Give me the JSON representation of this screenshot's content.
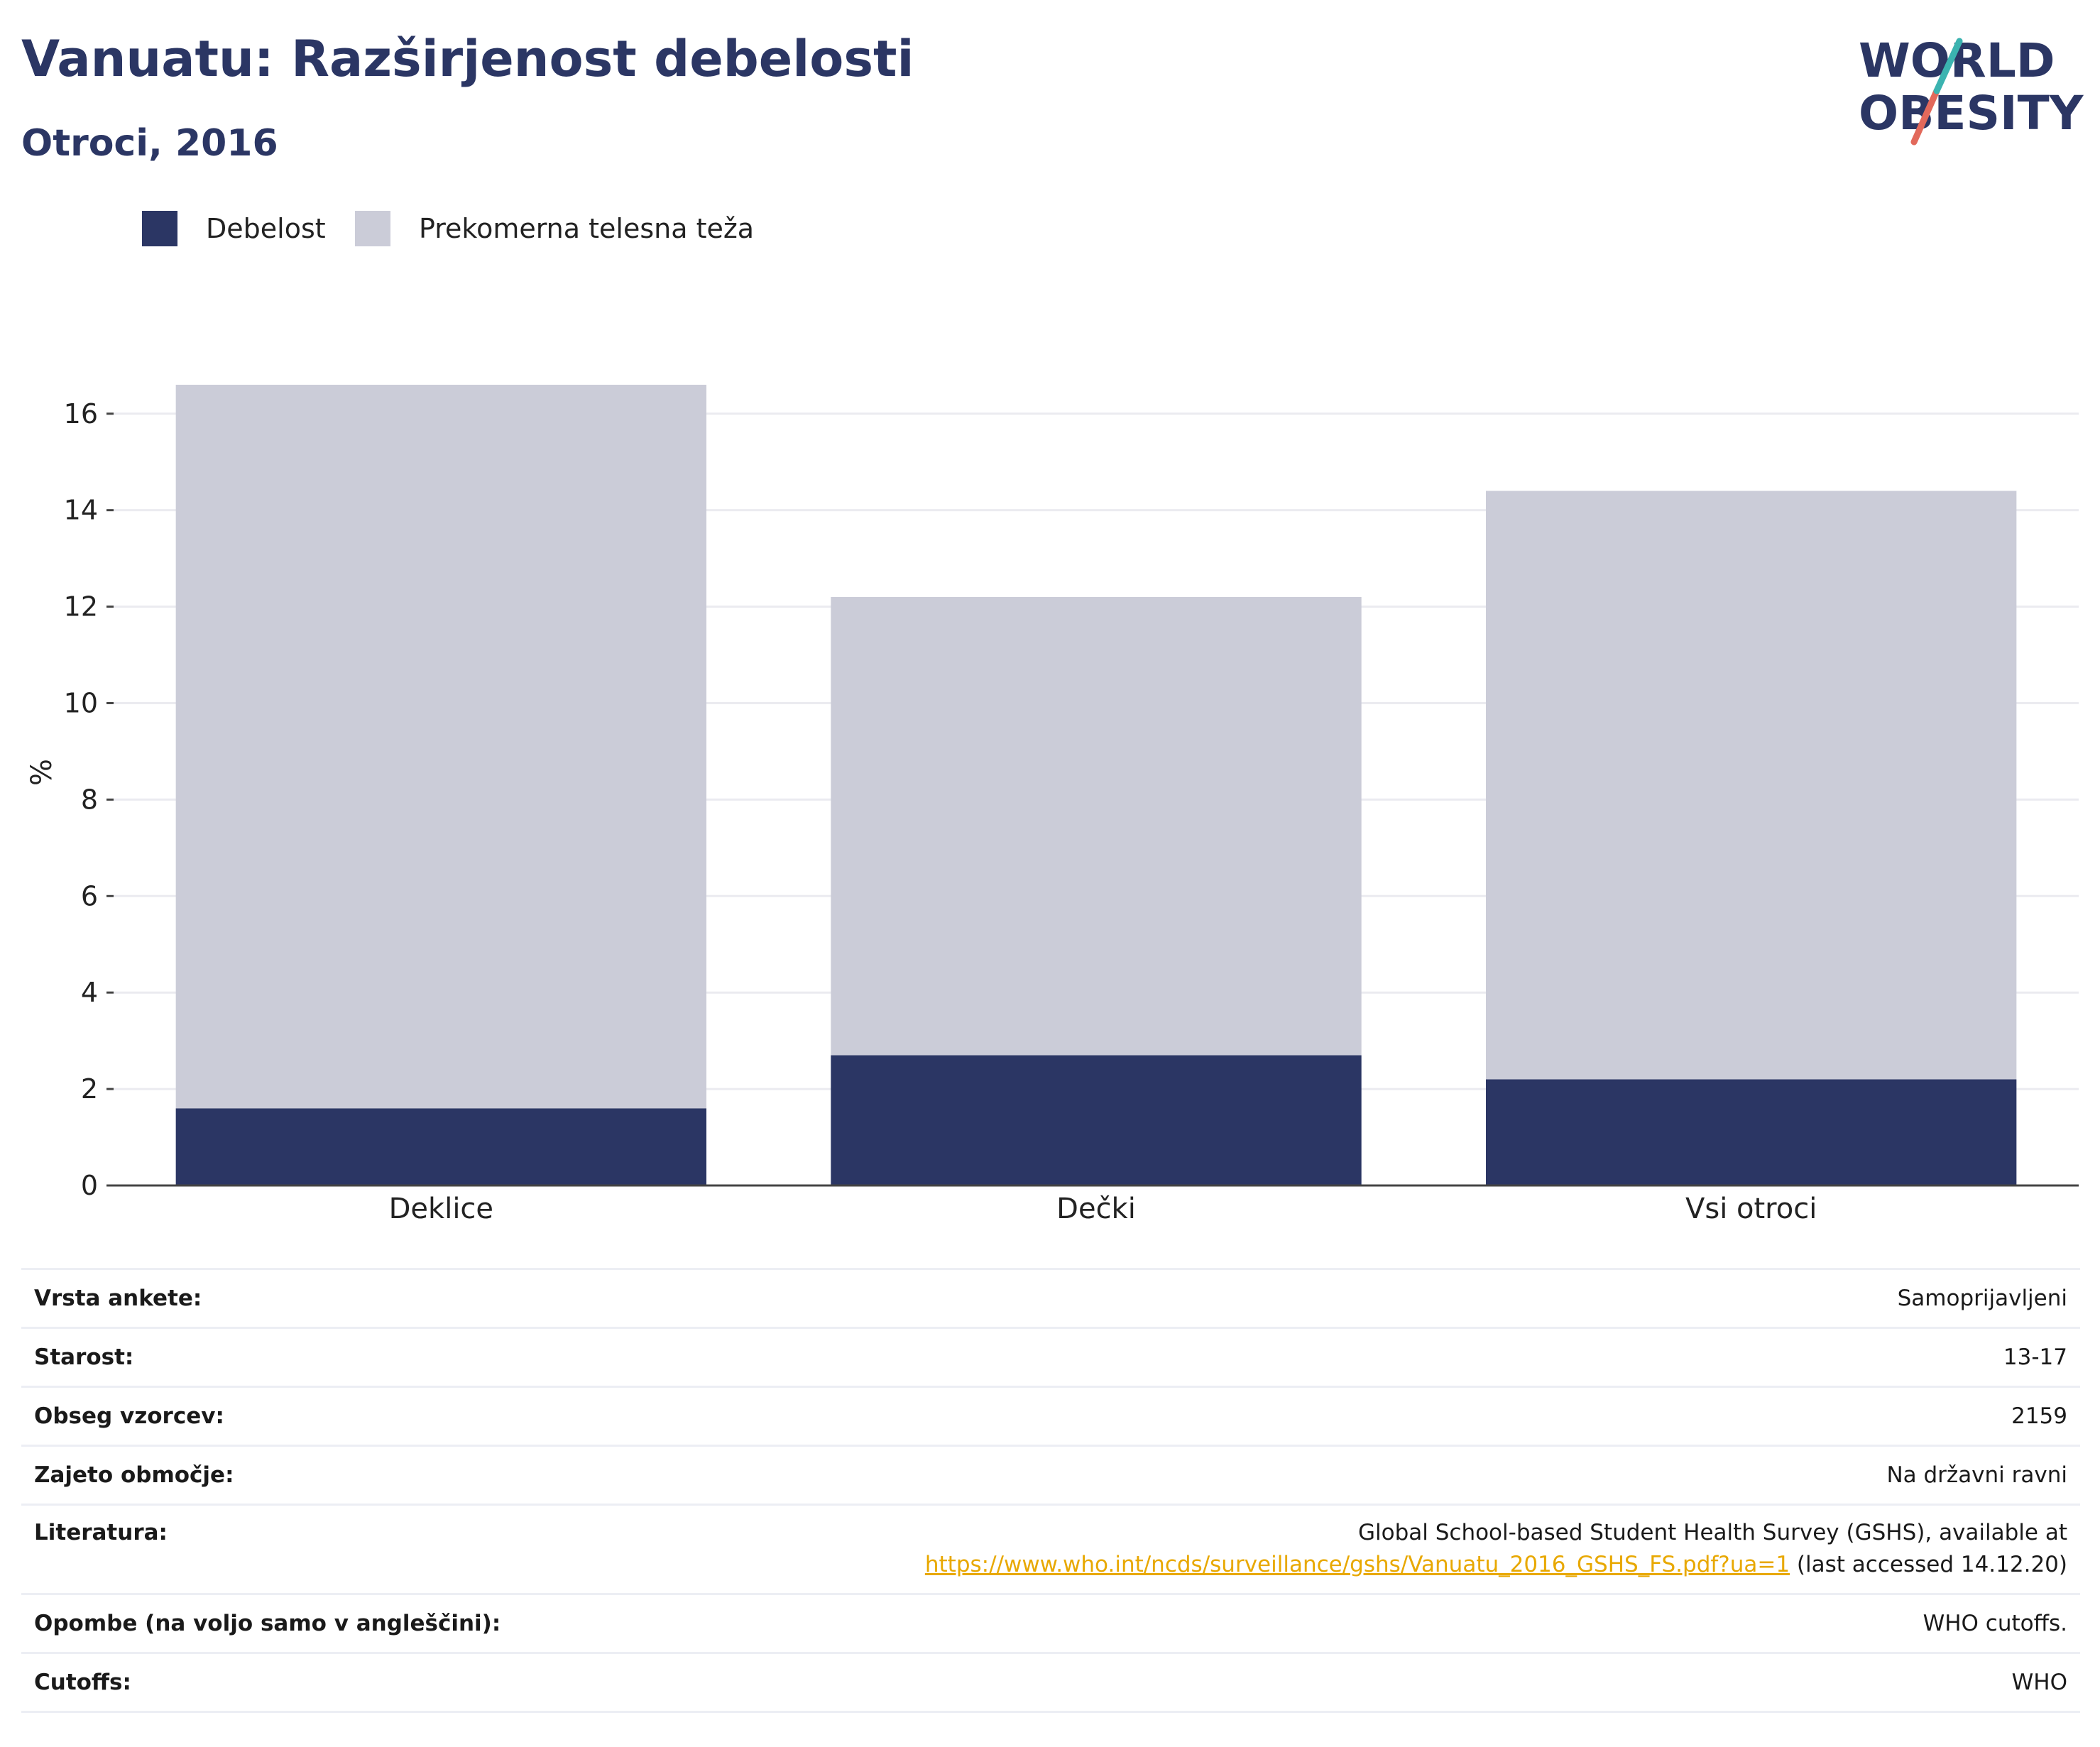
{
  "title": "Vanuatu: Razširjenost debelosti",
  "subtitle": "Otroci, 2016",
  "logo": {
    "line1": "WORLD",
    "line2": "OBESITY"
  },
  "colors": {
    "obesity": "#2b3664",
    "overweight": "#cbccd8",
    "title": "#2b3664",
    "link": "#e8a800",
    "logo_slash_top": "#3bb3b0",
    "logo_slash_bottom": "#e2695b"
  },
  "legend": [
    {
      "label": "Debelost",
      "color": "#2b3664"
    },
    {
      "label": "Prekomerna telesna teža",
      "color": "#cbccd8"
    }
  ],
  "chart_data": {
    "type": "bar",
    "stacked": true,
    "categories": [
      "Deklice",
      "Dečki",
      "Vsi otroci"
    ],
    "series": [
      {
        "name": "Debelost",
        "values": [
          1.6,
          2.7,
          2.2
        ]
      },
      {
        "name": "Prekomerna telesna teža",
        "values": [
          15.0,
          9.5,
          12.2
        ]
      }
    ],
    "ylabel": "%",
    "ylim": [
      0,
      16.6
    ],
    "yticks": [
      0,
      2,
      4,
      6,
      8,
      10,
      12,
      14,
      16
    ],
    "grid": true,
    "legend_position": "top-left"
  },
  "info": [
    {
      "key": "Vrsta ankete:",
      "value": "Samoprijavljeni"
    },
    {
      "key": "Starost:",
      "value": "13-17"
    },
    {
      "key": "Obseg vzorcev:",
      "value": "2159"
    },
    {
      "key": "Zajeto območje:",
      "value": "Na državni ravni"
    },
    {
      "key": "Literatura:",
      "value_line1": "Global School-based Student Health Survey (GSHS), available at",
      "link": "https://www.who.int/ncds/surveillance/gshs/Vanuatu_2016_GSHS_FS.pdf?ua=1",
      "value_suffix": " (last accessed 14.12.20)"
    },
    {
      "key": "Opombe (na voljo samo v angleščini):",
      "value": "WHO cutoffs."
    },
    {
      "key": "Cutoffs:",
      "value": "WHO"
    }
  ]
}
